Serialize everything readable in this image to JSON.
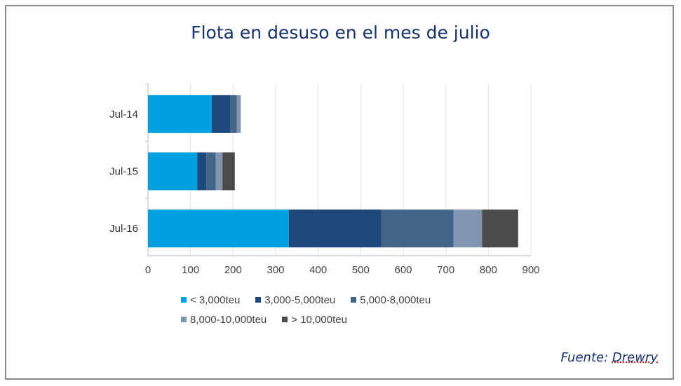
{
  "chart_data": {
    "type": "bar",
    "orientation": "horizontal",
    "stacked": true,
    "title": "Flota en desuso en el mes de julio",
    "categories": [
      "Jul-14",
      "Jul-15",
      "Jul-16"
    ],
    "series": [
      {
        "name": "< 3,000teu",
        "color": "#009fdf",
        "values": [
          150,
          116,
          331
        ]
      },
      {
        "name": "3,000-5,000teu",
        "color": "#1f497d",
        "values": [
          44,
          21,
          217
        ]
      },
      {
        "name": "5,000-8,000teu",
        "color": "#426487",
        "values": [
          15,
          22,
          170
        ]
      },
      {
        "name": "8,000-10,000teu",
        "color": "#8194b0",
        "values": [
          9,
          16,
          67
        ]
      },
      {
        "name": "> 10,000teu",
        "color": "#4b4b4d",
        "values": [
          0,
          29,
          85
        ]
      }
    ],
    "xlim": [
      0,
      900
    ],
    "xticks": [
      0,
      100,
      200,
      300,
      400,
      500,
      600,
      700,
      800,
      900
    ],
    "grid": true,
    "legend_position": "bottom"
  },
  "source": {
    "label": "Fuente:",
    "name": "Drewry"
  }
}
